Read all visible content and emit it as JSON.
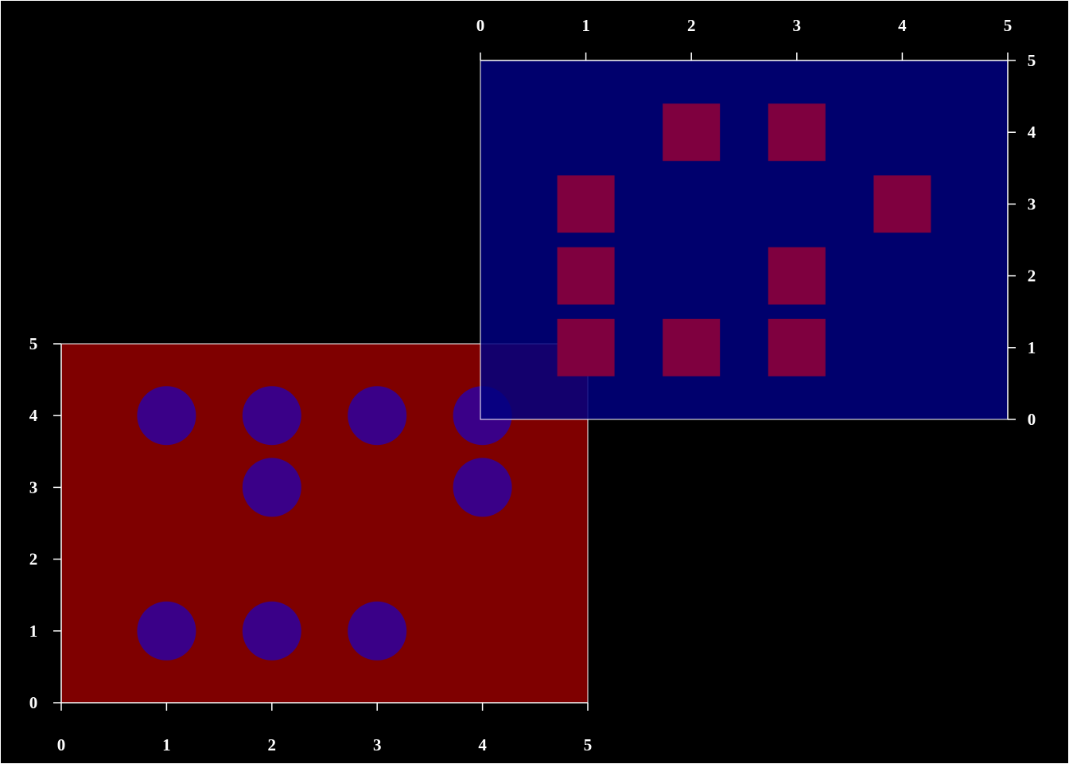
{
  "background": "#000000",
  "chart_data": [
    {
      "type": "scatter",
      "marker": "circle",
      "panel_color": "#7f0000",
      "marker_color": "#3a0088",
      "highlight_color": "#2000cc",
      "xlim": [
        0,
        5
      ],
      "ylim": [
        0,
        5
      ],
      "xticks": [
        "0",
        "1",
        "2",
        "3",
        "4",
        "5"
      ],
      "yticks": [
        "0",
        "1",
        "2",
        "3",
        "4",
        "5"
      ],
      "x_axis_position": "bottom",
      "y_axis_position": "left",
      "points": [
        {
          "x": 1,
          "y": 4
        },
        {
          "x": 2,
          "y": 4
        },
        {
          "x": 3,
          "y": 4
        },
        {
          "x": 4,
          "y": 4
        },
        {
          "x": 2,
          "y": 3
        },
        {
          "x": 4,
          "y": 3
        },
        {
          "x": 1,
          "y": 1
        },
        {
          "x": 2,
          "y": 1
        },
        {
          "x": 3,
          "y": 1
        }
      ]
    },
    {
      "type": "scatter",
      "marker": "square",
      "panel_color": "#000080",
      "marker_color": "#7f003f",
      "highlight_color": "#c00020",
      "xlim": [
        0,
        5
      ],
      "ylim": [
        0,
        5
      ],
      "xticks": [
        "0",
        "1",
        "2",
        "3",
        "4",
        "5"
      ],
      "yticks": [
        "0",
        "1",
        "2",
        "3",
        "4",
        "5"
      ],
      "x_axis_position": "top",
      "y_axis_position": "right",
      "points": [
        {
          "x": 2,
          "y": 4
        },
        {
          "x": 3,
          "y": 4
        },
        {
          "x": 1,
          "y": 3
        },
        {
          "x": 4,
          "y": 3
        },
        {
          "x": 1,
          "y": 2
        },
        {
          "x": 3,
          "y": 2
        },
        {
          "x": 1,
          "y": 1
        },
        {
          "x": 2,
          "y": 1
        },
        {
          "x": 3,
          "y": 1
        }
      ]
    }
  ]
}
